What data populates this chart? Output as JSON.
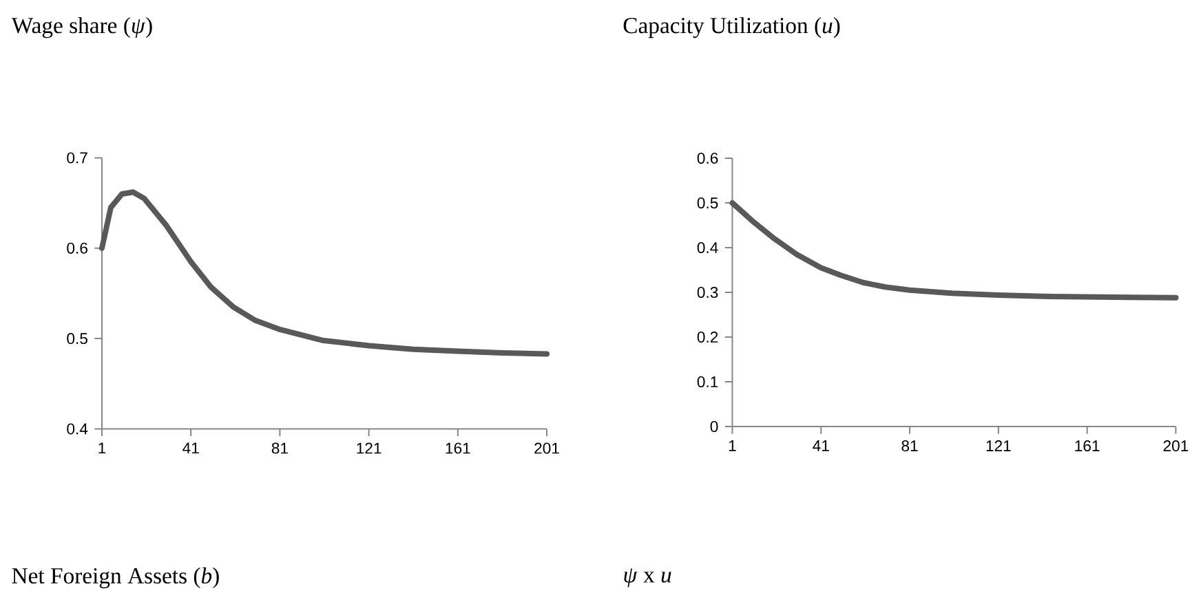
{
  "chart_data": [
    {
      "type": "line",
      "title": "Wage share (*ψ*)",
      "x": [
        1,
        5,
        10,
        15,
        20,
        30,
        41,
        50,
        60,
        70,
        81,
        100,
        121,
        141,
        161,
        181,
        201
      ],
      "values": [
        0.6,
        0.645,
        0.66,
        0.662,
        0.655,
        0.625,
        0.585,
        0.557,
        0.535,
        0.52,
        0.51,
        0.498,
        0.492,
        0.488,
        0.486,
        0.484,
        0.483
      ],
      "color": "#595959",
      "xlim": [
        1,
        201
      ],
      "ylim": [
        0.4,
        0.7
      ],
      "xticks": [
        1,
        41,
        81,
        121,
        161,
        201
      ],
      "yticks": [
        0.4,
        0.5,
        0.6,
        0.7
      ]
    },
    {
      "type": "line",
      "title": "Capacity Utilization (*u*)",
      "x": [
        1,
        10,
        20,
        30,
        41,
        50,
        60,
        70,
        81,
        100,
        121,
        141,
        161,
        181,
        201
      ],
      "values": [
        0.5,
        0.46,
        0.42,
        0.385,
        0.355,
        0.338,
        0.322,
        0.312,
        0.305,
        0.298,
        0.294,
        0.291,
        0.29,
        0.289,
        0.288
      ],
      "color": "#595959",
      "xlim": [
        1,
        201
      ],
      "ylim": [
        0,
        0.6
      ],
      "xticks": [
        1,
        41,
        81,
        121,
        161,
        201
      ],
      "yticks": [
        0,
        0.1,
        0.2,
        0.3,
        0.4,
        0.5,
        0.6
      ]
    },
    {
      "type": "other",
      "title": "Net Foreign Assets (*b*)"
    },
    {
      "type": "other",
      "title": "*ψ* x *u*"
    }
  ]
}
